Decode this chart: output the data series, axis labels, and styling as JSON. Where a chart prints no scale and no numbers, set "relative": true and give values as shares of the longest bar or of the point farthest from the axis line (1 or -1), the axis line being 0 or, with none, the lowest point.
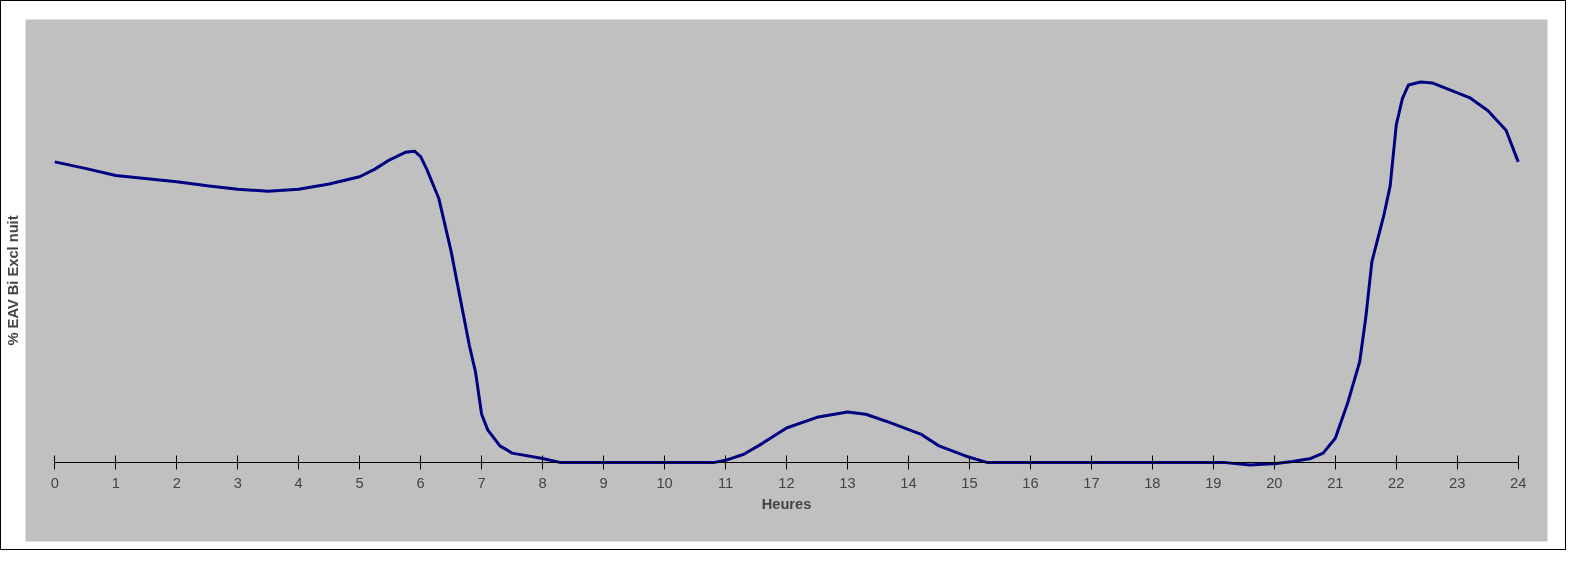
{
  "chart_data": {
    "type": "line",
    "relative": true,
    "xlabel": "Heures",
    "ylabel": "% EAV Bi Excl nuit",
    "xlim": [
      0,
      24
    ],
    "xticks": [
      0,
      1,
      2,
      3,
      4,
      5,
      6,
      7,
      8,
      9,
      10,
      11,
      12,
      13,
      14,
      15,
      16,
      17,
      18,
      19,
      20,
      21,
      22,
      23,
      24
    ],
    "grid": false,
    "marker": "none",
    "line_style": "solid",
    "series": [
      {
        "color": "#000080",
        "x": [
          0,
          0.5,
          1,
          2,
          2.5,
          3,
          3.5,
          4,
          4.5,
          5,
          5.25,
          5.5,
          5.75,
          5.9,
          6.0,
          6.1,
          6.3,
          6.5,
          6.6,
          6.8,
          6.9,
          7.0,
          7.1,
          7.3,
          7.5,
          8,
          8.3,
          10.8,
          11,
          11.3,
          11.6,
          12,
          12.5,
          13,
          13.3,
          13.7,
          14.2,
          14.5,
          15,
          15.3,
          19.2,
          19.6,
          20,
          20.3,
          20.6,
          20.8,
          21,
          21.2,
          21.4,
          21.5,
          21.6,
          21.8,
          21.9,
          22,
          22.1,
          22.2,
          22.4,
          22.6,
          22.9,
          23.2,
          23.5,
          23.8,
          24
        ],
        "values": [
          0.79,
          0.773,
          0.754,
          0.738,
          0.727,
          0.718,
          0.713,
          0.718,
          0.732,
          0.751,
          0.771,
          0.796,
          0.815,
          0.818,
          0.804,
          0.771,
          0.693,
          0.555,
          0.472,
          0.307,
          0.238,
          0.127,
          0.086,
          0.044,
          0.025,
          0.011,
          0,
          0,
          0.006,
          0.022,
          0.05,
          0.091,
          0.119,
          0.133,
          0.127,
          0.105,
          0.075,
          0.044,
          0.014,
          0,
          0,
          -0.006,
          -0.003,
          0.003,
          0.011,
          0.025,
          0.064,
          0.155,
          0.265,
          0.381,
          0.528,
          0.652,
          0.727,
          0.887,
          0.956,
          0.992,
          1.0,
          0.997,
          0.978,
          0.959,
          0.925,
          0.873,
          0.79
        ]
      }
    ]
  }
}
